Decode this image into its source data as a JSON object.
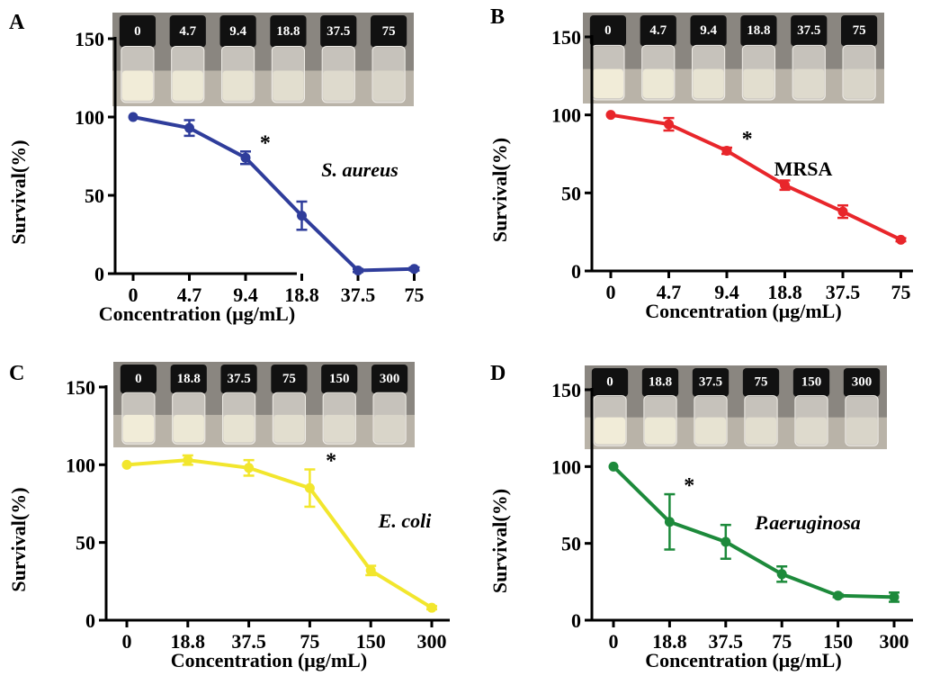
{
  "colors": {
    "A": "#2f3d9b",
    "B": "#e8262b",
    "C": "#f2e62d",
    "D": "#1d8a3b"
  },
  "chart_data": [
    {
      "type": "line",
      "panel": "A",
      "organism": "S. aureus",
      "italic": true,
      "xlabel": "Concentration (μg/mL)",
      "ylabel": "Survival(%)",
      "categories": [
        "0",
        "4.7",
        "9.4",
        "18.8",
        "37.5",
        "75"
      ],
      "values": [
        100,
        93,
        74,
        37,
        2,
        3
      ],
      "errors": [
        0,
        5,
        4,
        9,
        1,
        1
      ],
      "yticks": [
        "0",
        "50",
        "100",
        "150"
      ],
      "ylim": [
        0,
        150
      ],
      "significance": "*",
      "significance_index": 2,
      "vial_labels": [
        "0",
        "4.7",
        "9.4",
        "18.8",
        "37.5",
        "75"
      ]
    },
    {
      "type": "line",
      "panel": "B",
      "organism": "MRSA",
      "italic": false,
      "xlabel": "Concentration (μg/mL)",
      "ylabel": "Survival(%)",
      "categories": [
        "0",
        "4.7",
        "9.4",
        "18.8",
        "37.5",
        "75"
      ],
      "values": [
        100,
        94,
        77,
        55,
        38,
        20
      ],
      "errors": [
        0,
        4,
        2,
        3,
        4,
        1
      ],
      "yticks": [
        "0",
        "50",
        "100",
        "150"
      ],
      "ylim": [
        0,
        150
      ],
      "significance": "*",
      "significance_index": 2,
      "vial_labels": [
        "0",
        "4.7",
        "9.4",
        "18.8",
        "37.5",
        "75"
      ]
    },
    {
      "type": "line",
      "panel": "C",
      "organism": "E. coli",
      "italic": true,
      "xlabel": "Concentration (μg/mL)",
      "ylabel": "Survival(%)",
      "categories": [
        "0",
        "18.8",
        "37.5",
        "75",
        "150",
        "300"
      ],
      "values": [
        100,
        103,
        98,
        85,
        32,
        8
      ],
      "errors": [
        0,
        3,
        5,
        12,
        3,
        1
      ],
      "yticks": [
        "0",
        "50",
        "100",
        "150"
      ],
      "ylim": [
        0,
        150
      ],
      "significance": "*",
      "significance_index": 3,
      "vial_labels": [
        "0",
        "18.8",
        "37.5",
        "75",
        "150",
        "300"
      ]
    },
    {
      "type": "line",
      "panel": "D",
      "organism": "P.aeruginosa",
      "italic": true,
      "xlabel": "Concentration (μg/mL)",
      "ylabel": "Survival(%)",
      "categories": [
        "0",
        "18.8",
        "37.5",
        "75",
        "150",
        "300"
      ],
      "values": [
        100,
        64,
        51,
        30,
        16,
        15
      ],
      "errors": [
        0,
        18,
        11,
        5,
        1,
        3
      ],
      "yticks": [
        "0",
        "50",
        "100",
        "150"
      ],
      "ylim": [
        0,
        150
      ],
      "significance": "*",
      "significance_index": 1,
      "vial_labels": [
        "0",
        "18.8",
        "37.5",
        "75",
        "150",
        "300"
      ]
    }
  ]
}
